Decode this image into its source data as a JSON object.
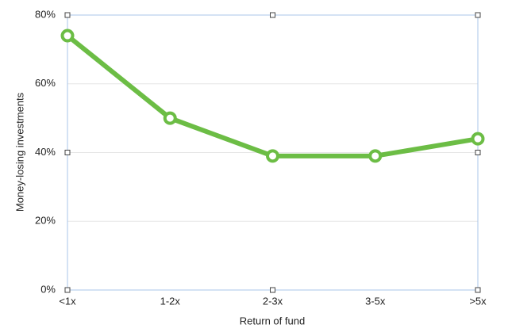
{
  "chart_data": {
    "type": "line",
    "x_label": "Return of fund",
    "y_label": "Money-losing investments",
    "categories": [
      "<1x",
      "1-2x",
      "2-3x",
      "3-5x",
      ">5x"
    ],
    "series": [
      {
        "name": "Money-losing investments",
        "color": "#6cbd45",
        "values": [
          74,
          50,
          39,
          39,
          44
        ]
      }
    ],
    "ylim": [
      0,
      80
    ],
    "yticks": [
      {
        "value": 0,
        "label": "0%"
      },
      {
        "value": 20,
        "label": "20%"
      },
      {
        "value": 40,
        "label": "40%"
      },
      {
        "value": 60,
        "label": "60%"
      },
      {
        "value": 80,
        "label": "80%"
      }
    ],
    "grid": true
  }
}
